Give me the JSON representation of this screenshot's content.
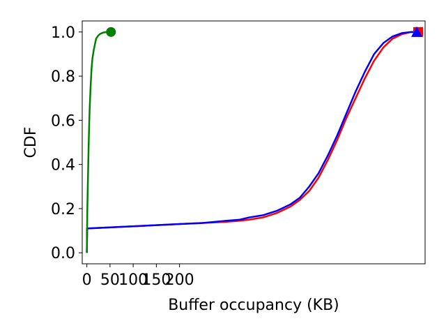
{
  "chart_data": {
    "type": "line",
    "xlabel": "Buffer occupancy (KB)",
    "ylabel": "CDF",
    "xlim": [
      -10,
      730
    ],
    "ylim": [
      -0.05,
      1.05
    ],
    "xticks": [
      0,
      50,
      100,
      150,
      200
    ],
    "xtick_labels": [
      "0",
      "50",
      "100",
      "150",
      "200"
    ],
    "yticks": [
      0.0,
      0.2,
      0.4,
      0.6,
      0.8,
      1.0
    ],
    "ytick_labels": [
      "0.0",
      "0.2",
      "0.4",
      "0.6",
      "0.8",
      "1.0"
    ],
    "grid": false,
    "legend": "none",
    "series": [
      {
        "color": "#ff0000",
        "marker": "square",
        "x": [
          0,
          0.5,
          100,
          150,
          200,
          250,
          300,
          330,
          350,
          380,
          410,
          440,
          460,
          480,
          500,
          520,
          540,
          560,
          580,
          600,
          620,
          640,
          660,
          680,
          700,
          715
        ],
        "y": [
          0.0,
          0.11,
          0.12,
          0.125,
          0.13,
          0.135,
          0.14,
          0.145,
          0.15,
          0.16,
          0.18,
          0.21,
          0.24,
          0.28,
          0.34,
          0.42,
          0.51,
          0.61,
          0.7,
          0.79,
          0.87,
          0.93,
          0.97,
          0.99,
          1.0,
          1.0
        ]
      },
      {
        "color": "#0000ff",
        "marker": "triangle",
        "x": [
          0,
          0.5,
          100,
          150,
          200,
          250,
          300,
          330,
          350,
          380,
          410,
          440,
          460,
          480,
          500,
          520,
          540,
          560,
          580,
          600,
          620,
          640,
          660,
          680,
          700,
          712
        ],
        "y": [
          0.0,
          0.11,
          0.12,
          0.125,
          0.13,
          0.135,
          0.145,
          0.15,
          0.16,
          0.17,
          0.19,
          0.22,
          0.25,
          0.3,
          0.36,
          0.44,
          0.53,
          0.63,
          0.73,
          0.82,
          0.9,
          0.95,
          0.98,
          0.995,
          1.0,
          1.0
        ]
      },
      {
        "color": "#008000",
        "marker": "circle",
        "x": [
          0,
          0.5,
          1,
          2,
          3,
          4,
          5,
          6,
          8,
          10,
          12,
          15,
          18,
          20,
          25,
          30,
          35,
          40,
          45,
          52
        ],
        "y": [
          0.0,
          0.1,
          0.2,
          0.3,
          0.4,
          0.5,
          0.58,
          0.65,
          0.75,
          0.83,
          0.88,
          0.92,
          0.95,
          0.97,
          0.985,
          0.993,
          0.997,
          0.999,
          1.0,
          1.0
        ]
      }
    ]
  }
}
